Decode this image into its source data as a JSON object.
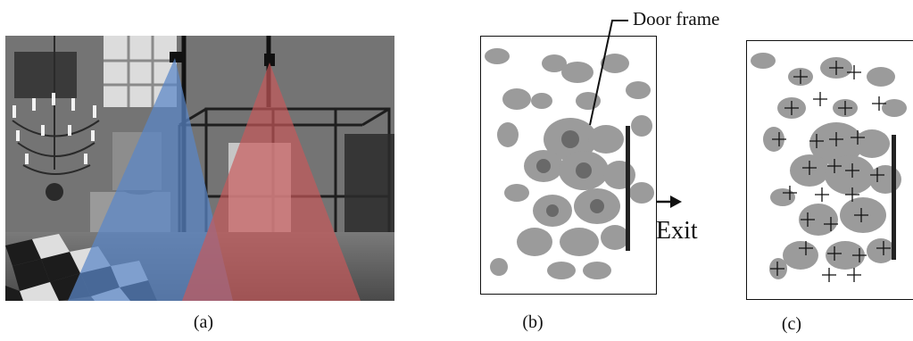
{
  "figure": {
    "panels": [
      {
        "id": "a",
        "caption": "(a)"
      },
      {
        "id": "b",
        "caption": "(b)"
      },
      {
        "id": "c",
        "caption": "(c)"
      }
    ],
    "annotations": {
      "door_frame": "Door frame",
      "exit": "Exit"
    },
    "colors": {
      "left_camera_fov": "#5a86c8",
      "right_camera_fov": "#c8585a",
      "frame_border": "#111111",
      "density_gray": "#8a8a8a"
    }
  }
}
